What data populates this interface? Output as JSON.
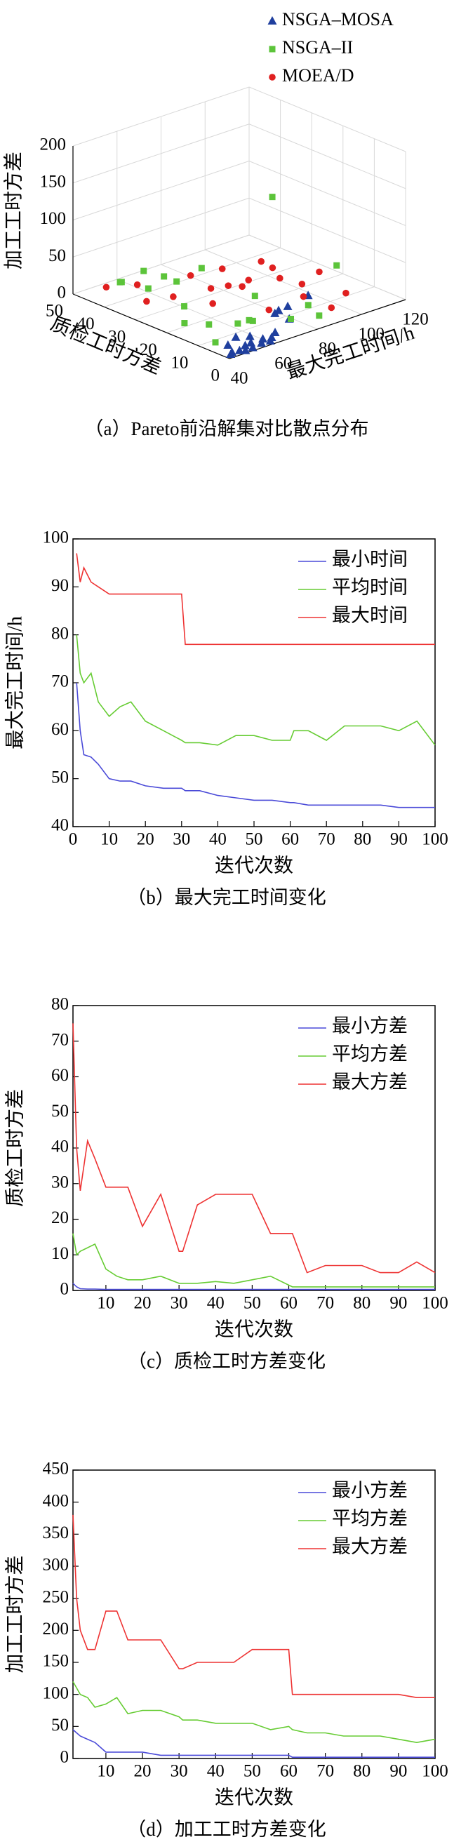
{
  "chart_data": [
    {
      "type": "scatter3d",
      "caption": "（a）Pareto前沿解集对比散点分布",
      "xlabel": "最大完工时间/h",
      "ylabel": "质检工时方差",
      "zlabel": "加工工时方差",
      "xlim": [
        40,
        120
      ],
      "ylim": [
        0,
        50
      ],
      "zlim": [
        0,
        200
      ],
      "xticks": [
        40,
        60,
        80,
        100,
        120
      ],
      "yticks": [
        0,
        10,
        20,
        30,
        40,
        50
      ],
      "zticks": [
        0,
        50,
        100,
        150,
        200
      ],
      "grid": true,
      "legend": "top",
      "series": [
        {
          "name": "NSGA–MOSA",
          "color": "#1f3f9e",
          "marker": "triangle",
          "x": [
            42,
            44,
            46,
            48,
            50,
            52,
            54,
            56,
            58,
            60,
            62,
            45,
            50,
            55,
            65,
            70,
            68,
            75,
            80,
            72
          ],
          "y": [
            1,
            2,
            1,
            0.5,
            2,
            1,
            3,
            1,
            2,
            1,
            2,
            4,
            5,
            4,
            3,
            2,
            4,
            6,
            3,
            8
          ],
          "z": [
            2,
            1,
            3,
            2,
            4,
            1,
            2,
            3,
            5,
            2,
            3,
            6,
            10,
            8,
            5,
            20,
            30,
            25,
            40,
            15
          ]
        },
        {
          "name": "NSGA–II",
          "color": "#5cc43a",
          "marker": "square",
          "x": [
            60,
            55,
            50,
            65,
            60,
            70,
            48,
            52,
            58,
            62,
            66,
            75,
            85,
            95,
            110,
            70,
            45,
            55,
            80,
            90
          ],
          "y": [
            40,
            45,
            42,
            45,
            35,
            38,
            20,
            15,
            10,
            8,
            12,
            5,
            3,
            25,
            15,
            30,
            8,
            25,
            20,
            10
          ],
          "z": [
            5,
            10,
            20,
            15,
            30,
            8,
            5,
            8,
            12,
            15,
            5,
            10,
            8,
            120,
            30,
            40,
            3,
            12,
            10,
            5
          ]
        },
        {
          "name": "MOEA/D",
          "color": "#e02020",
          "marker": "circle",
          "x": [
            45,
            50,
            60,
            70,
            80,
            90,
            75,
            65,
            55,
            85,
            95,
            100,
            60,
            70,
            75,
            88,
            92,
            58,
            68,
            48
          ],
          "y": [
            30,
            25,
            20,
            15,
            18,
            12,
            25,
            30,
            40,
            8,
            10,
            5,
            10,
            5,
            12,
            20,
            4,
            18,
            22,
            45
          ],
          "z": [
            20,
            30,
            40,
            50,
            60,
            30,
            20,
            35,
            15,
            25,
            45,
            20,
            60,
            70,
            10,
            40,
            10,
            25,
            55,
            10
          ]
        }
      ]
    },
    {
      "type": "line",
      "caption": "（b）最大完工时间变化",
      "xlabel": "迭代次数",
      "ylabel": "最大完工时间/h",
      "x": [
        1,
        2,
        3,
        5,
        7,
        10,
        13,
        16,
        20,
        25,
        30,
        31,
        35,
        40,
        45,
        50,
        55,
        60,
        61,
        65,
        70,
        75,
        80,
        85,
        90,
        95,
        100
      ],
      "xlim": [
        0,
        100
      ],
      "xticks": [
        0,
        10,
        20,
        30,
        40,
        50,
        60,
        70,
        80,
        90,
        100
      ],
      "ylim": [
        40,
        100
      ],
      "yticks": [
        40,
        50,
        60,
        70,
        80,
        90,
        100
      ],
      "grid": false,
      "legend": "upper right",
      "series": [
        {
          "name": "最小时间",
          "color": "#4a4ad8",
          "values": [
            70,
            60,
            55,
            54.5,
            53,
            50,
            49.5,
            49.5,
            48.5,
            48,
            48,
            47.5,
            47.5,
            46.5,
            46,
            45.5,
            45.5,
            45,
            45,
            44.5,
            44.5,
            44.5,
            44.5,
            44.5,
            44,
            44,
            44
          ]
        },
        {
          "name": "平均时间",
          "color": "#66cc33",
          "values": [
            80,
            72,
            70,
            72,
            66,
            63,
            65,
            66,
            62,
            60,
            58,
            57.5,
            57.5,
            57,
            59,
            59,
            58,
            58,
            60,
            60,
            58,
            61,
            61,
            61,
            60,
            62,
            57
          ]
        },
        {
          "name": "最大时间",
          "color": "#ee3333",
          "values": [
            97,
            91,
            94,
            91,
            90,
            88.5,
            88.5,
            88.5,
            88.5,
            88.5,
            88.5,
            78,
            78,
            78,
            78,
            78,
            78,
            78,
            78,
            78,
            78,
            78,
            78,
            78,
            78,
            78,
            78
          ]
        }
      ]
    },
    {
      "type": "line",
      "caption": "（c）质检工时方差变化",
      "xlabel": "迭代次数",
      "ylabel": "质检工时方差",
      "x": [
        1,
        2,
        3,
        5,
        7,
        10,
        13,
        16,
        20,
        25,
        30,
        31,
        35,
        40,
        45,
        50,
        55,
        60,
        61,
        65,
        70,
        75,
        80,
        85,
        90,
        95,
        100
      ],
      "xlim": [
        1,
        100
      ],
      "xticks": [
        10,
        20,
        30,
        40,
        50,
        60,
        70,
        80,
        90,
        100
      ],
      "ylim": [
        0,
        80
      ],
      "yticks": [
        0,
        10,
        20,
        30,
        40,
        50,
        60,
        70,
        80
      ],
      "grid": false,
      "legend": "upper right",
      "series": [
        {
          "name": "最小方差",
          "color": "#4a4ad8",
          "values": [
            2,
            1,
            0.5,
            0.4,
            0.4,
            0.3,
            0.3,
            0.3,
            0.3,
            0.3,
            0.3,
            0.3,
            0.3,
            0.3,
            0.3,
            0.3,
            0.3,
            0.3,
            0.3,
            0.3,
            0.3,
            0.3,
            0.3,
            0.3,
            0.3,
            0.3,
            0.3
          ]
        },
        {
          "name": "平均方差",
          "color": "#66cc33",
          "values": [
            16,
            10,
            11,
            12,
            13,
            6,
            4,
            3,
            3,
            4,
            2,
            2,
            2,
            2.5,
            2,
            3,
            4,
            1.5,
            1,
            1,
            1,
            1,
            1,
            1,
            1,
            1,
            1
          ]
        },
        {
          "name": "最大方差",
          "color": "#ee3333",
          "values": [
            75,
            40,
            28,
            42,
            37,
            29,
            29,
            29,
            18,
            27,
            11,
            11,
            24,
            27,
            27,
            27,
            16,
            16,
            16,
            5,
            7,
            7,
            7,
            5,
            5,
            8,
            5
          ]
        }
      ]
    },
    {
      "type": "line",
      "caption": "（d）加工工时方差变化",
      "xlabel": "迭代次数",
      "ylabel": "加工工时方差",
      "x": [
        1,
        2,
        3,
        5,
        7,
        10,
        13,
        16,
        20,
        25,
        30,
        31,
        35,
        40,
        45,
        50,
        55,
        60,
        61,
        65,
        70,
        75,
        80,
        85,
        90,
        95,
        100
      ],
      "xlim": [
        1,
        100
      ],
      "xticks": [
        10,
        20,
        30,
        40,
        50,
        60,
        70,
        80,
        90,
        100
      ],
      "ylim": [
        0,
        450
      ],
      "yticks": [
        0,
        50,
        100,
        150,
        200,
        250,
        300,
        350,
        400,
        450
      ],
      "grid": false,
      "legend": "upper right",
      "series": [
        {
          "name": "最小方差",
          "color": "#4a4ad8",
          "values": [
            45,
            40,
            35,
            30,
            25,
            10,
            10,
            10,
            10,
            5,
            5,
            5,
            5,
            5,
            5,
            5,
            5,
            5,
            2,
            2,
            2,
            2,
            2,
            2,
            2,
            2,
            2
          ]
        },
        {
          "name": "平均方差",
          "color": "#66cc33",
          "values": [
            120,
            110,
            100,
            95,
            80,
            85,
            95,
            70,
            75,
            75,
            65,
            60,
            60,
            55,
            55,
            55,
            45,
            50,
            45,
            40,
            40,
            35,
            35,
            35,
            30,
            25,
            30
          ]
        },
        {
          "name": "最大方差",
          "color": "#ee3333",
          "values": [
            380,
            250,
            200,
            170,
            170,
            230,
            230,
            185,
            185,
            185,
            140,
            140,
            150,
            150,
            150,
            170,
            170,
            170,
            100,
            100,
            100,
            100,
            100,
            100,
            100,
            95,
            95
          ]
        }
      ]
    }
  ]
}
